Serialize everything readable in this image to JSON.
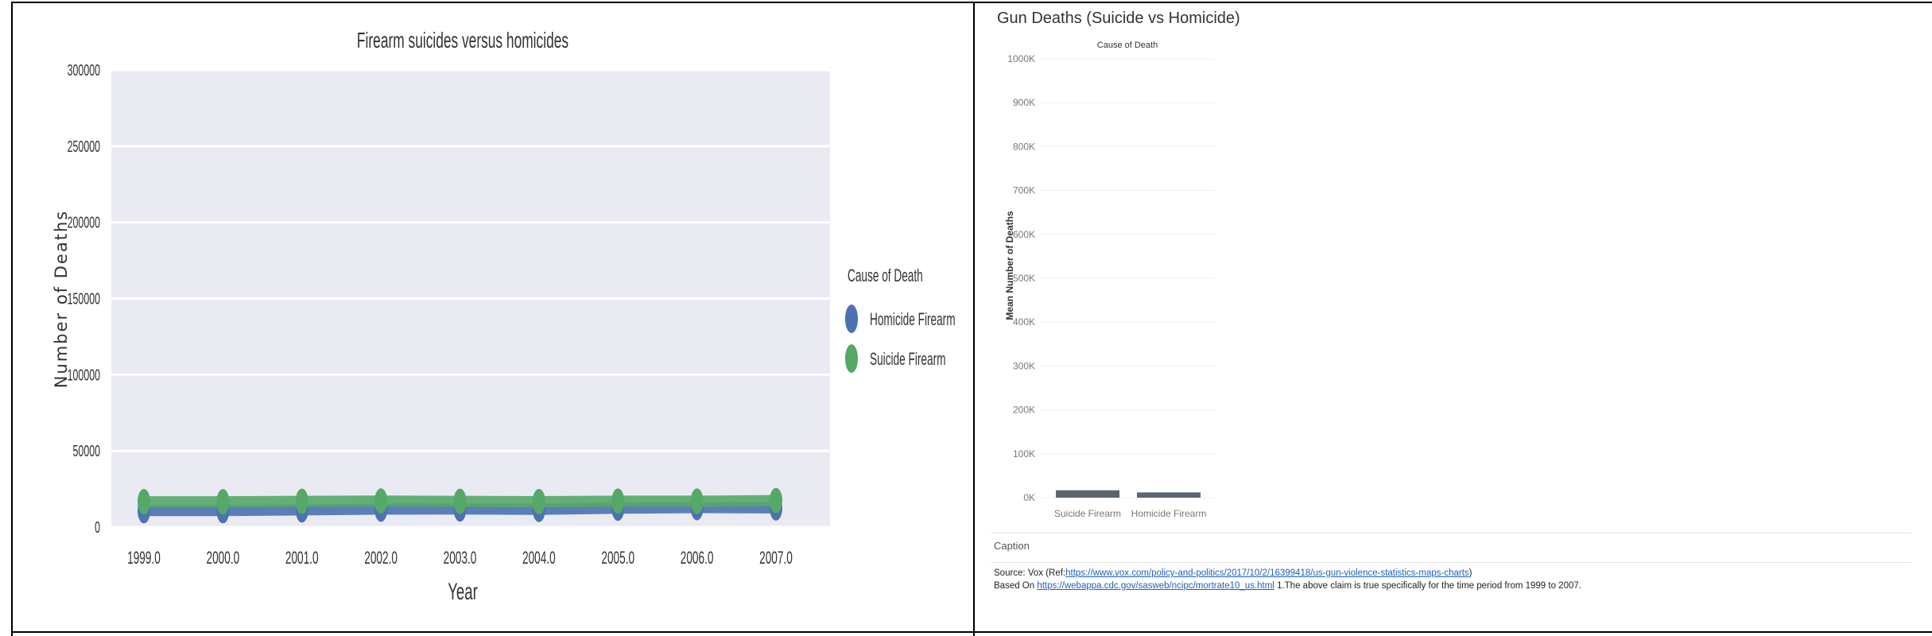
{
  "chart_data": [
    {
      "type": "line",
      "title": "Firearm suicides versus homicides",
      "xlabel": "Year",
      "ylabel": "Number of Deaths",
      "categories": [
        "1999.0",
        "2000.0",
        "2001.0",
        "2002.0",
        "2003.0",
        "2004.0",
        "2005.0",
        "2006.0",
        "2007.0"
      ],
      "series": [
        {
          "name": "Homicide Firearm",
          "color": "#4c72b0",
          "values": [
            10800,
            10800,
            11300,
            11800,
            11900,
            11600,
            12400,
            12800,
            12600
          ]
        },
        {
          "name": "Suicide Firearm",
          "color": "#55a868",
          "values": [
            16600,
            16600,
            16900,
            17100,
            16900,
            16700,
            17000,
            17000,
            17400
          ]
        }
      ],
      "yticks": [
        "0",
        "50000",
        "100000",
        "150000",
        "200000",
        "250000",
        "300000"
      ],
      "ylim": [
        0,
        300000
      ],
      "grid": true,
      "legend": {
        "title": "Cause of Death",
        "placement": "right"
      }
    },
    {
      "type": "bar",
      "title": "Gun Deaths (Suicide vs Homicide)",
      "header": "Cause of Death",
      "ylabel": "Mean Number of Deaths",
      "categories": [
        "Suicide Firearm",
        "Homicide Firearm"
      ],
      "values": [
        16900,
        12000
      ],
      "bar_color": "#5b6570",
      "yticks": [
        "0K",
        "100K",
        "200K",
        "300K",
        "400K",
        "500K",
        "600K",
        "700K",
        "800K",
        "900K",
        "1000K"
      ],
      "ylim": [
        0,
        1000000
      ],
      "grid": true
    }
  ],
  "caption": {
    "title": "Caption",
    "line1_prefix": "Source: Vox (Ref:",
    "line1_link": "https://www.vox.com/policy-and-politics/2017/10/2/16399418/us-gun-violence-statistics-maps-charts",
    "line1_suffix": ")",
    "line2_prefix": "Based On ",
    "line2_link": "https://webappa.cdc.gov/sasweb/ncipc/mortrate10_us.html",
    "line2_suffix": " 1.The above claim is true specifically for the time period from 1999 to 2007."
  }
}
